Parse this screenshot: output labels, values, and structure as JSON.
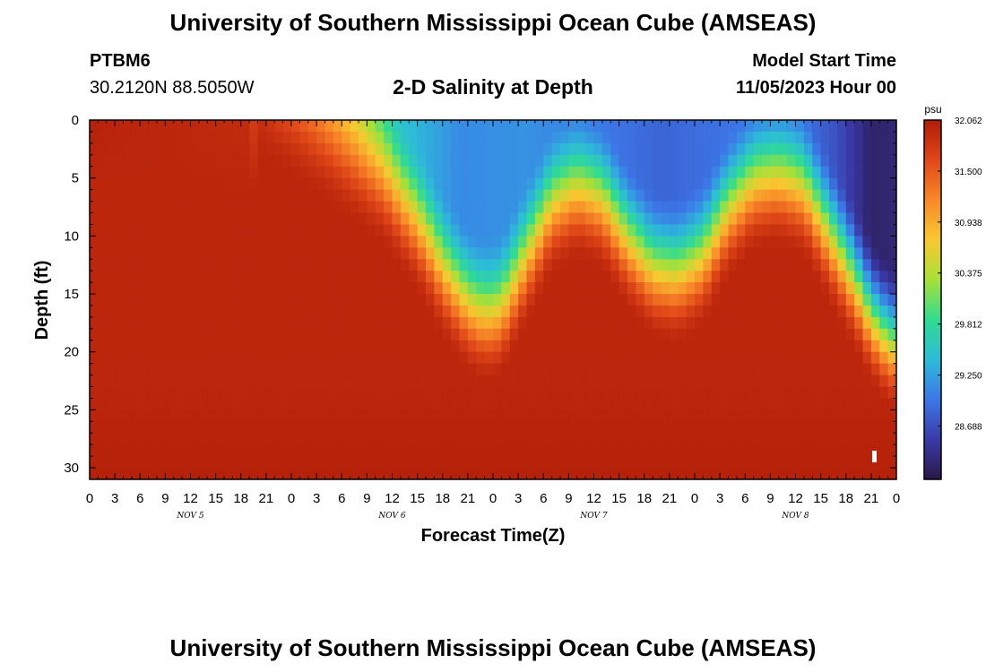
{
  "header": {
    "title": "University of Southern Mississippi Ocean Cube (AMSEAS)",
    "station": "PTBM6",
    "coords": "30.2120N  88.5050W",
    "subtitle": "2-D Salinity at Depth",
    "start_label": "Model Start Time",
    "start_value": "11/05/2023 Hour 00"
  },
  "footer": {
    "title": "University of Southern Mississippi Ocean Cube (AMSEAS)"
  },
  "colors": {
    "palette": [
      "#2a1848",
      "#3a3aa8",
      "#3c78e8",
      "#2cbcd8",
      "#30dc90",
      "#a8e038",
      "#f8c830",
      "#f88828",
      "#e04818",
      "#b01c08"
    ]
  },
  "chart_data": {
    "type": "heatmap",
    "xlabel": "Forecast Time(Z)",
    "ylabel": "Depth (ft)",
    "x_range_hours": [
      0,
      96
    ],
    "y_range_ft": [
      0,
      31
    ],
    "x_tick_labels": [
      "0",
      "3",
      "6",
      "9",
      "12",
      "15",
      "18",
      "21",
      "0",
      "3",
      "6",
      "9",
      "12",
      "15",
      "18",
      "21",
      "0",
      "3",
      "6",
      "9",
      "12",
      "15",
      "18",
      "21",
      "0",
      "3",
      "6",
      "9",
      "12",
      "15",
      "18",
      "21",
      "0"
    ],
    "y_tick_values": [
      0,
      5,
      10,
      15,
      20,
      25,
      30
    ],
    "y_tick_labels": [
      "0",
      "5",
      "10",
      "15",
      "20",
      "25",
      "30"
    ],
    "day_labels": [
      {
        "hour": 12,
        "label": "NOV 5"
      },
      {
        "hour": 36,
        "label": "NOV 6"
      },
      {
        "hour": 60,
        "label": "NOV 7"
      },
      {
        "hour": 84,
        "label": "NOV 8"
      }
    ],
    "colorbar": {
      "unit": "psu",
      "min": 28.1,
      "max": 32.062,
      "tick_values": [
        32.062,
        31.5,
        30.938,
        30.375,
        29.812,
        29.25,
        28.688
      ],
      "tick_labels": [
        "32.062",
        "31.500",
        "30.938",
        "30.375",
        "29.812",
        "29.250",
        "28.688"
      ]
    },
    "halocline_depth_ft_by_hour": [
      [
        0,
        0
      ],
      [
        19,
        0
      ],
      [
        22,
        1
      ],
      [
        28,
        4
      ],
      [
        35,
        8
      ],
      [
        39,
        12
      ],
      [
        42,
        16
      ],
      [
        45,
        19
      ],
      [
        47,
        20
      ],
      [
        49,
        19.5
      ],
      [
        52,
        15
      ],
      [
        55,
        10.5
      ],
      [
        58,
        9
      ],
      [
        61,
        10
      ],
      [
        64,
        13.5
      ],
      [
        67,
        16
      ],
      [
        70,
        16.5
      ],
      [
        73,
        15
      ],
      [
        76,
        11
      ],
      [
        79,
        8.5
      ],
      [
        82,
        8
      ],
      [
        85,
        9
      ],
      [
        88,
        13
      ],
      [
        91,
        17
      ],
      [
        93,
        20
      ],
      [
        95,
        22
      ],
      [
        96,
        22.5
      ]
    ],
    "surface_salinity_psu_by_hour": [
      [
        0,
        32.0
      ],
      [
        19,
        31.9
      ],
      [
        22,
        31.0
      ],
      [
        27,
        30.6
      ],
      [
        32,
        30.2
      ],
      [
        37,
        29.5
      ],
      [
        44,
        29.1
      ],
      [
        52,
        29.15
      ],
      [
        60,
        29.0
      ],
      [
        68,
        28.85
      ],
      [
        76,
        28.95
      ],
      [
        84,
        29.0
      ],
      [
        89,
        28.7
      ],
      [
        93,
        28.25
      ],
      [
        96,
        28.3
      ]
    ],
    "bottom_salinity_psu": 31.95
  }
}
